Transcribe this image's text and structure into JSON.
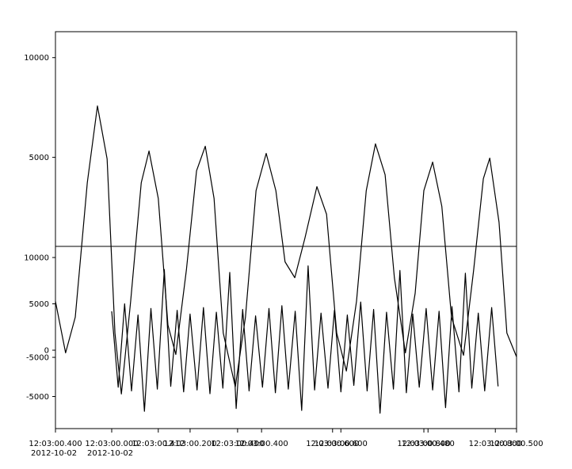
{
  "chart_data": [
    {
      "type": "line",
      "xlim": [
        0,
        1
      ],
      "ylim": [
        -8600,
        11300
      ],
      "yticks": [
        5000,
        10000
      ],
      "xticks": [
        {
          "value": 0,
          "label": "12:03:00.400\n2012-10-02"
        },
        {
          "value": 0.122,
          "label": "12:03:00.000\n2012-10-02"
        },
        {
          "value": 0.223,
          "label": "12:03:00.412"
        },
        {
          "value": 0.292,
          "label": "12:03:00.200"
        },
        {
          "value": 0.395,
          "label": "12:03:00.400"
        },
        {
          "value": 0.447,
          "label": "12:03:00.400"
        },
        {
          "value": 0.601,
          "label": "12:03:00.600"
        },
        {
          "value": 0.619,
          "label": "12:03:00.600"
        },
        {
          "value": 0.799,
          "label": "12:03:00.800"
        },
        {
          "value": 0.808,
          "label": "12:03:00.480"
        },
        {
          "value": 0.954,
          "label": "12:03:00.800"
        },
        {
          "value": 1,
          "label": "12:03:00.500"
        }
      ],
      "series": [
        {
          "color": "#000000",
          "x": [
            0,
            0.022,
            0.043,
            0.069,
            0.091,
            0.112,
            0.129,
            0.143,
            0.163,
            0.186,
            0.203,
            0.223,
            0.244,
            0.261,
            0.284,
            0.306,
            0.325,
            0.344,
            0.364,
            0.39,
            0.412,
            0.435,
            0.457,
            0.478,
            0.498,
            0.519,
            0.541,
            0.567,
            0.588,
            0.61,
            0.631,
            0.653,
            0.674,
            0.694,
            0.715,
            0.735,
            0.759,
            0.78,
            0.799,
            0.818,
            0.838,
            0.859,
            0.885,
            0.907,
            0.928,
            0.942,
            0.962,
            0.979,
            1
          ],
          "values": [
            -2222,
            -4802,
            -3016,
            3730,
            7579,
            4921,
            -3810,
            -6865,
            -2222,
            3730,
            5317,
            2937,
            -3413,
            -4881,
            -635,
            4325,
            5556,
            2937,
            -3810,
            -6508,
            -3016,
            3333,
            5198,
            3333,
            -238,
            -1032,
            952,
            3532,
            2143,
            -3810,
            -5714,
            -2222,
            3333,
            5675,
            4127,
            -1032,
            -4802,
            -1825,
            3333,
            4762,
            2540,
            -3016,
            -4921,
            -635,
            3929,
            4960,
            1746,
            -3810,
            -5000
          ]
        }
      ]
    },
    {
      "type": "line",
      "xlim": [
        0,
        1
      ],
      "ylim": [
        -8460,
        11200
      ],
      "yticks": [
        -5000,
        0,
        5000,
        10000
      ],
      "series": [
        {
          "color": "#000000",
          "x": [
            0.122,
            0.136,
            0.15,
            0.165,
            0.179,
            0.193,
            0.207,
            0.221,
            0.236,
            0.25,
            0.264,
            0.278,
            0.292,
            0.307,
            0.321,
            0.335,
            0.349,
            0.363,
            0.378,
            0.392,
            0.406,
            0.42,
            0.434,
            0.449,
            0.463,
            0.477,
            0.491,
            0.505,
            0.52,
            0.534,
            0.548,
            0.562,
            0.576,
            0.591,
            0.605,
            0.619,
            0.633,
            0.647,
            0.662,
            0.676,
            0.69,
            0.704,
            0.718,
            0.733,
            0.747,
            0.761,
            0.775,
            0.789,
            0.804,
            0.818,
            0.832,
            0.846,
            0.86,
            0.875,
            0.889,
            0.903,
            0.917,
            0.931,
            0.946,
            0.96
          ],
          "values": [
            4200,
            -4000,
            5000,
            -4400,
            3800,
            -6600,
            4500,
            -4200,
            8700,
            -3900,
            4300,
            -4500,
            3900,
            -4300,
            4600,
            -4700,
            4100,
            -4100,
            8400,
            -6300,
            4400,
            -4400,
            3700,
            -4000,
            4500,
            -4600,
            4800,
            -4200,
            4200,
            -6500,
            9100,
            -4300,
            4000,
            -4100,
            4300,
            -4500,
            3800,
            -3800,
            5200,
            -4400,
            4400,
            -6800,
            4100,
            -4200,
            8600,
            -4600,
            3900,
            -4000,
            4500,
            -4300,
            4200,
            -6200,
            4700,
            -4500,
            8300,
            -4100,
            4000,
            -4400,
            4600,
            -3900
          ]
        }
      ]
    },
    {
      "type": "line",
      "xlim": [
        0,
        1
      ],
      "ylim": [
        -12000,
        5900
      ],
      "yticks": [
        -5000
      ],
      "series": []
    }
  ]
}
